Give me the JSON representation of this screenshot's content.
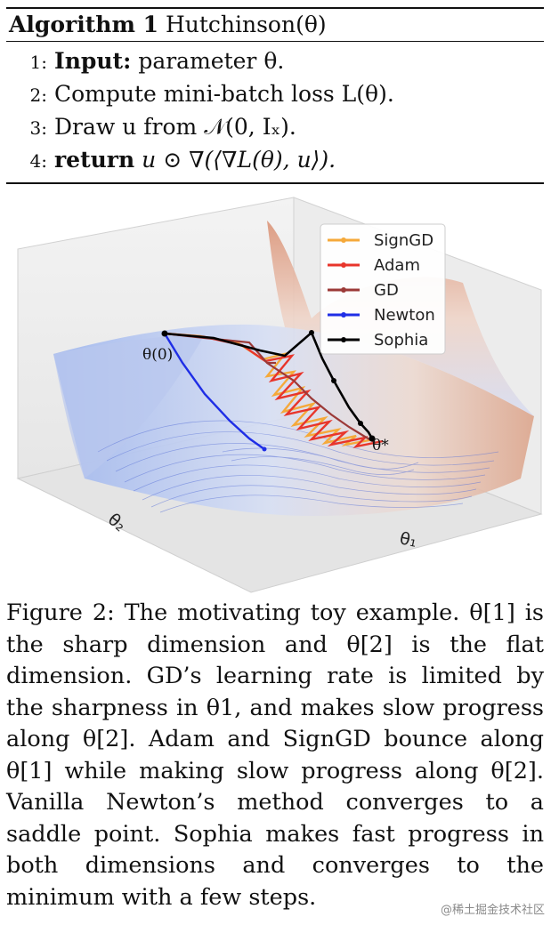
{
  "algorithm": {
    "label": "Algorithm 1",
    "name": "Hutchinson(θ)",
    "lines": [
      {
        "num": "1:",
        "kw": "Input:",
        "text": "parameter θ."
      },
      {
        "num": "2:",
        "kw": "",
        "text": "Compute mini-batch loss L(θ)."
      },
      {
        "num": "3:",
        "kw": "",
        "text": "Draw u from 𝒩(0, Iₓ)."
      },
      {
        "num": "4:",
        "kw": "return",
        "text": "u ⊙ ∇(⟨∇L(θ), u⟩)."
      }
    ]
  },
  "figure": {
    "legend": [
      {
        "label": "SignGD",
        "color": "#f5a93a"
      },
      {
        "label": "Adam",
        "color": "#e8352b"
      },
      {
        "label": "GD",
        "color": "#9c3a38"
      },
      {
        "label": "Newton",
        "color": "#1f2ee6"
      },
      {
        "label": "Sophia",
        "color": "#000000"
      }
    ],
    "start_label": "θ(0)",
    "opt_label": "θ*",
    "axis_x_label": "θ₁",
    "axis_y_label": "θ₂"
  },
  "caption": "Figure 2: The motivating toy example. θ[1] is the sharp dimension and θ[2] is the flat dimension. GD’s learning rate is limited by the sharpness in θ1, and makes slow progress along θ[2]. Adam and SignGD bounce along θ[1] while making slow progress along θ[2]. Vanilla Newton’s method converges to a saddle point. Sophia makes fast progress in both dimensions and converges to the minimum with a few steps.",
  "watermark": "@稀土掘金技术社区"
}
